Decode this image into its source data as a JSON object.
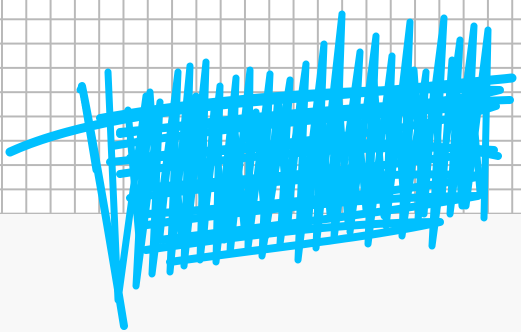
{
  "canvas": {
    "background_color": "#f8f8f8",
    "grid": {
      "visible": true,
      "line_color": "#b9b9b9",
      "background_color": "#ffffff"
    },
    "scribble": {
      "stroke_color": "#00c0ff",
      "description_icon": "pen-scribble"
    }
  }
}
